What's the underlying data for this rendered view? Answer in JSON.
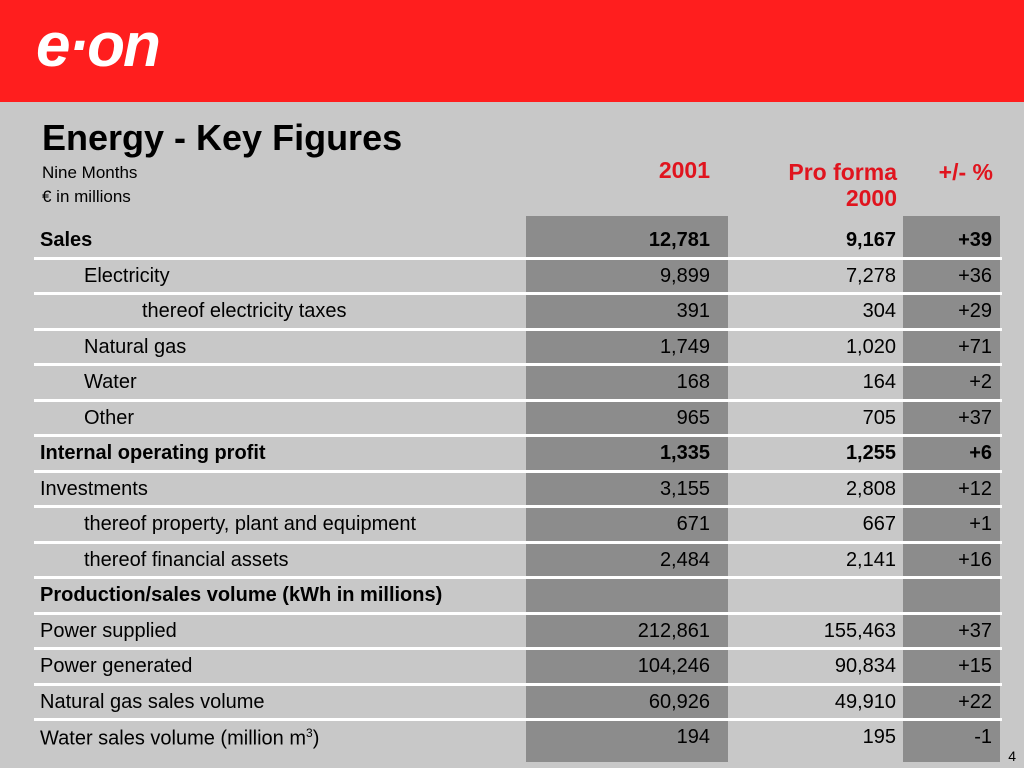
{
  "brand": {
    "logo_text": "e·on",
    "color": "#ff1e1e"
  },
  "title": "Energy - Key Figures",
  "subtitle": "Nine Months",
  "unit": "€ in millions",
  "columns": {
    "c1": "2001",
    "c2_line1": "Pro forma",
    "c2_line2": "2000",
    "c3": "+/- %"
  },
  "rows": [
    {
      "label": "Sales",
      "v1": "12,781",
      "v2": "9,167",
      "v3": "+39"
    },
    {
      "label": "Electricity",
      "v1": "9,899",
      "v2": "7,278",
      "v3": "+36"
    },
    {
      "label": "thereof electricity taxes",
      "v1": "391",
      "v2": "304",
      "v3": "+29"
    },
    {
      "label": "Natural gas",
      "v1": "1,749",
      "v2": "1,020",
      "v3": "+71"
    },
    {
      "label": "Water",
      "v1": "168",
      "v2": "164",
      "v3": "+2"
    },
    {
      "label": "Other",
      "v1": "965",
      "v2": "705",
      "v3": "+37"
    },
    {
      "label": "Internal operating profit",
      "v1": "1,335",
      "v2": "1,255",
      "v3": "+6"
    },
    {
      "label": "Investments",
      "v1": "3,155",
      "v2": "2,808",
      "v3": "+12"
    },
    {
      "label": "thereof property, plant and equipment",
      "v1": "671",
      "v2": "667",
      "v3": "+1"
    },
    {
      "label": "thereof financial assets",
      "v1": "2,484",
      "v2": "2,141",
      "v3": "+16"
    },
    {
      "label": "Production/sales volume (kWh in millions)",
      "v1": "",
      "v2": "",
      "v3": ""
    },
    {
      "label": "Power supplied",
      "v1": "212,861",
      "v2": "155,463",
      "v3": "+37"
    },
    {
      "label": "Power generated",
      "v1": "104,246",
      "v2": "90,834",
      "v3": "+15"
    },
    {
      "label": "Natural gas sales volume",
      "v1": "60,926",
      "v2": "49,910",
      "v3": "+22"
    },
    {
      "label_main": "Water sales volume (million m",
      "label_sup": "3",
      "label_end": ")",
      "v1": "194",
      "v2": "195",
      "v3": "-1"
    }
  ],
  "page_number": "4"
}
